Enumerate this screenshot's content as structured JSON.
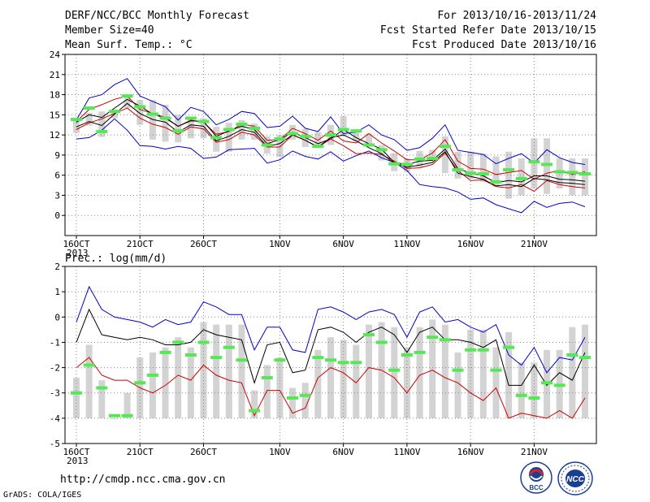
{
  "header": {
    "title": "DERF/NCC/BCC Monthly Forecast",
    "member": "Member Size=40",
    "variable": "Mean Surf. Temp.: °C",
    "period": "For 2013/10/16-2013/11/24",
    "start": "Fcst Started Refer Date 2013/10/15",
    "produced": "Fcst Produced Date 2013/10/16"
  },
  "footer": {
    "url": "http://cmdp.ncc.cma.gov.cn",
    "credit": "GrADS: COLA/IGES"
  },
  "logos": {
    "bcc": "BCC",
    "ncc": "NCC"
  },
  "colors": {
    "max": "#0000cc",
    "upper": "#cc0000",
    "mean": "#000000",
    "obs": "#55e855",
    "bar": "#d3d3d3",
    "grid": "#888888"
  },
  "chart_data": [
    {
      "type": "line",
      "title": "Mean Surf. Temp.: °C",
      "ylim": [
        -3,
        24
      ],
      "yticks": [
        0,
        3,
        6,
        9,
        12,
        15,
        18,
        21,
        24
      ],
      "xtick_labels": [
        "16OCT\n2013",
        "21OCT",
        "26OCT",
        "1NOV",
        "6NOV",
        "11NOV",
        "16NOV",
        "21NOV"
      ],
      "grid": true,
      "series": [
        {
          "values": [
            11.4,
            11.6,
            12.7,
            14.4,
            12.7,
            10.4,
            10.3,
            9.9,
            10.3,
            10.0,
            8.5,
            8.7,
            9.8,
            9.9,
            10.0,
            7.8,
            8.3,
            9.6,
            8.8,
            8.4,
            9.5,
            8.1,
            8.9,
            9.6,
            8.6,
            7.9,
            6.7,
            4.6,
            4.3,
            4.1,
            3.5,
            2.4,
            2.6,
            1.6,
            1.0,
            0.4,
            2.1,
            1.2,
            1.8,
            2.0,
            1.3
          ]
        },
        {
          "values": [
            14.2,
            17.5,
            18.0,
            19.5,
            20.4,
            17.8,
            17.0,
            16.2,
            14.2,
            16.1,
            15.5,
            13.5,
            14.3,
            15.5,
            15.2,
            13.1,
            13.3,
            14.8,
            13.0,
            12.5,
            14.7,
            12.2,
            12.4,
            13.5,
            12.0,
            11.3,
            9.7,
            10.1,
            11.5,
            13.5,
            9.7,
            9.4,
            9.1,
            7.7,
            8.5,
            9.2,
            7.8,
            9.8,
            8.6,
            7.9,
            7.6
          ]
        },
        {
          "values": [
            14.0,
            15.8,
            16.5,
            17.3,
            17.8,
            15.8,
            15.2,
            14.6,
            13.3,
            14.2,
            13.9,
            12.1,
            12.5,
            13.6,
            13.3,
            11.2,
            11.3,
            13.0,
            12.2,
            11.2,
            12.6,
            11.1,
            10.8,
            12.2,
            10.8,
            9.6,
            8.3,
            8.3,
            9.3,
            11.3,
            8.1,
            7.0,
            6.9,
            6.1,
            6.4,
            6.7,
            5.4,
            6.3,
            6.7,
            6.1,
            6.5
          ]
        },
        {
          "values": [
            13.9,
            15.0,
            14.6,
            16.0,
            17.3,
            16.3,
            15.1,
            14.5,
            13.3,
            14.1,
            14.0,
            11.8,
            12.6,
            13.3,
            12.8,
            10.7,
            11.3,
            12.4,
            11.6,
            10.7,
            11.4,
            12.8,
            11.6,
            10.7,
            9.9,
            7.9,
            7.6,
            8.1,
            8.2,
            9.9,
            7.0,
            6.3,
            5.9,
            4.9,
            5.2,
            5.0,
            5.9,
            5.9,
            5.4,
            5.3,
            5.1
          ]
        },
        {
          "values": [
            12.8,
            13.8,
            14.4,
            15.2,
            16.0,
            14.5,
            13.6,
            13.1,
            12.1,
            13.2,
            12.9,
            10.9,
            11.3,
            12.4,
            12.0,
            10.2,
            10.2,
            12.0,
            11.2,
            10.2,
            11.4,
            10.4,
            9.2,
            9.3,
            9.1,
            8.1,
            7.0,
            7.1,
            7.6,
            9.3,
            6.7,
            5.2,
            5.3,
            4.3,
            4.1,
            4.6,
            3.6,
            5.2,
            4.6,
            4.3,
            4.1
          ]
        },
        {
          "values": [
            13.2,
            14.0,
            13.4,
            15.1,
            16.7,
            15.2,
            14.3,
            13.9,
            12.4,
            13.5,
            13.3,
            11.1,
            11.8,
            12.8,
            12.4,
            10.3,
            10.7,
            12.0,
            11.2,
            10.2,
            11.6,
            12.0,
            11.1,
            10.1,
            9.2,
            7.8,
            7.2,
            7.5,
            7.9,
            9.5,
            6.3,
            5.8,
            5.4,
            4.4,
            4.6,
            4.3,
            5.5,
            5.3,
            4.9,
            4.8,
            4.6
          ]
        },
        {
          "values": [
            14.3,
            16.0,
            12.5,
            15.5,
            17.8,
            16.2,
            15.1,
            14.5,
            12.6,
            14.5,
            14.0,
            11.6,
            12.8,
            13.6,
            13.0,
            10.5,
            11.4,
            12.2,
            11.8,
            10.3,
            12.0,
            12.8,
            12.6,
            10.5,
            9.8,
            7.7,
            7.6,
            8.4,
            8.5,
            10.3,
            6.8,
            6.3,
            6.2,
            5.0,
            6.8,
            5.5,
            8.0,
            7.6,
            6.5,
            6.4,
            6.2
          ]
        }
      ],
      "bars": [
        [
          14.5,
          12.3
        ],
        [
          15.3,
          13.4
        ],
        [
          15.5,
          11.7
        ],
        [
          15.8,
          14.5
        ],
        [
          17.8,
          16.0
        ],
        [
          17.2,
          13.5
        ],
        [
          17.2,
          11.3
        ],
        [
          16.5,
          11.0
        ],
        [
          15.0,
          10.9
        ],
        [
          14.5,
          11.5
        ],
        [
          14.5,
          11.5
        ],
        [
          13.2,
          9.5
        ],
        [
          13.8,
          9.5
        ],
        [
          14.2,
          11.3
        ],
        [
          13.7,
          11.3
        ],
        [
          11.8,
          9.2
        ],
        [
          12.0,
          8.7
        ],
        [
          13.5,
          11.3
        ],
        [
          12.9,
          10.2
        ],
        [
          12.4,
          10.2
        ],
        [
          13.5,
          10.5
        ],
        [
          14.8,
          11.8
        ],
        [
          12.8,
          11.0
        ],
        [
          12.2,
          10.3
        ],
        [
          10.5,
          8.2
        ],
        [
          9.3,
          6.6
        ],
        [
          8.5,
          6.5
        ],
        [
          9.6,
          7.2
        ],
        [
          9.8,
          8.2
        ],
        [
          11.8,
          6.3
        ],
        [
          9.5,
          5.5
        ],
        [
          9.5,
          5.5
        ],
        [
          9.2,
          5.0
        ],
        [
          8.8,
          4.3
        ],
        [
          9.5,
          2.5
        ],
        [
          8.5,
          3.0
        ],
        [
          11.5,
          4.0
        ],
        [
          11.5,
          3.2
        ],
        [
          8.5,
          4.0
        ],
        [
          8.5,
          3.0
        ],
        [
          8.5,
          3.0
        ]
      ]
    },
    {
      "type": "line",
      "title": "Prec.: log(mm/d)",
      "ylim": [
        -5,
        2
      ],
      "yticks": [
        -5,
        -4,
        -3,
        -2,
        -1,
        0,
        1,
        2
      ],
      "xtick_labels": [
        "16OCT\n2013",
        "21OCT",
        "26OCT",
        "1NOV",
        "6NOV",
        "11NOV",
        "16NOV",
        "21NOV"
      ],
      "grid": true,
      "series": [
        {
          "values": [
            -0.2,
            1.2,
            0.3,
            0.0,
            -0.1,
            -0.2,
            -0.4,
            -0.1,
            -0.3,
            -0.2,
            0.6,
            0.4,
            0.1,
            0.1,
            -1.3,
            -0.4,
            -0.4,
            -1.3,
            -1.4,
            0.3,
            0.4,
            0.2,
            -0.1,
            0.2,
            0.3,
            0.1,
            -0.8,
            0.2,
            0.4,
            -0.2,
            -0.1,
            -0.4,
            -0.6,
            -0.3,
            -1.5,
            -1.9,
            -1.2,
            -2.2,
            -1.6,
            -1.7,
            -0.8
          ]
        },
        {
          "values": [
            -1.0,
            0.3,
            -0.7,
            -0.8,
            -0.9,
            -0.8,
            -0.9,
            -1.1,
            -1.1,
            -1.0,
            -0.5,
            -0.7,
            -0.8,
            -0.9,
            -2.6,
            -1.1,
            -1.0,
            -2.2,
            -2.1,
            -0.5,
            -0.4,
            -0.6,
            -1.0,
            -0.6,
            -0.4,
            -0.7,
            -1.4,
            -0.6,
            -0.4,
            -0.9,
            -0.9,
            -1.0,
            -1.2,
            -0.9,
            -2.7,
            -2.7,
            -1.9,
            -2.7,
            -2.2,
            -2.5,
            -1.4
          ]
        },
        {
          "values": [
            -2.0,
            -1.6,
            -2.3,
            -2.5,
            -2.5,
            -2.8,
            -3.0,
            -2.7,
            -2.3,
            -2.5,
            -1.9,
            -2.3,
            -2.5,
            -2.6,
            -3.9,
            -2.9,
            -2.9,
            -3.8,
            -3.6,
            -2.4,
            -2.0,
            -2.2,
            -2.6,
            -2.0,
            -2.1,
            -2.4,
            -3.0,
            -2.3,
            -2.1,
            -2.4,
            -2.6,
            -3.0,
            -3.3,
            -2.8,
            -4.0,
            -3.8,
            -3.9,
            -4.0,
            -3.7,
            -4.0,
            -3.2
          ]
        },
        {
          "values": [
            -3.0,
            -1.9,
            -2.8,
            -3.9,
            -3.9,
            -2.6,
            -2.3,
            -1.4,
            -1.0,
            -1.5,
            -1.0,
            -1.6,
            -1.2,
            -1.7,
            -3.7,
            -2.4,
            -1.7,
            -3.2,
            -3.1,
            -1.6,
            -1.7,
            -1.8,
            -1.8,
            -0.7,
            -1.0,
            -2.1,
            -1.5,
            -1.4,
            -0.8,
            -0.9,
            -2.1,
            -1.3,
            -1.3,
            -2.1,
            -1.2,
            -3.1,
            -3.2,
            -2.6,
            -2.7,
            -1.5,
            -1.6
          ]
        }
      ],
      "bars": [
        -2.4,
        -1.1,
        -2.5,
        -4.0,
        -3.0,
        -1.6,
        -1.4,
        -1.2,
        -0.8,
        -1.2,
        -0.2,
        -0.3,
        -0.3,
        -0.3,
        -2.9,
        -1.9,
        -1.6,
        -2.8,
        -2.6,
        -1.3,
        -0.8,
        -0.9,
        -1.1,
        -0.3,
        -0.2,
        -0.4,
        -1.2,
        -0.4,
        -0.1,
        -0.3,
        -1.4,
        -0.5,
        -0.5,
        -1.2,
        -0.6,
        -1.8,
        -1.8,
        -1.3,
        -1.3,
        -0.4,
        -0.3
      ]
    }
  ]
}
